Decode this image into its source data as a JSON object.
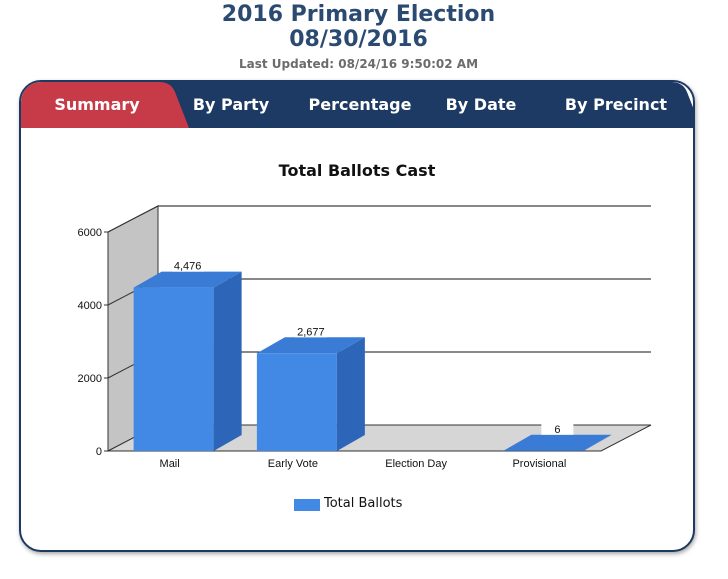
{
  "header": {
    "title_line1": "2016 Primary Election",
    "title_line2": "08/30/2016",
    "last_updated": "Last Updated: 08/24/16 9:50:02 AM"
  },
  "tabs": [
    {
      "label": "Summary",
      "active": true
    },
    {
      "label": "By Party",
      "active": false
    },
    {
      "label": "Percentage",
      "active": false
    },
    {
      "label": "By Date",
      "active": false
    },
    {
      "label": "By Precinct",
      "active": false
    }
  ],
  "colors": {
    "active_tab": "#c73a48",
    "inactive_tab": "#1c3a63",
    "bar": "#4189e4",
    "bar_side": "#2d66b8",
    "bar_top": "#3a7bd6"
  },
  "chart_data": {
    "type": "bar",
    "title": "Total Ballots Cast",
    "categories": [
      "Mail",
      "Early Vote",
      "Election Day",
      "Provisional"
    ],
    "series": [
      {
        "name": "Total Ballots",
        "values": [
          4476,
          2677,
          0,
          6
        ]
      }
    ],
    "data_labels": [
      "4,476",
      "2,677",
      "",
      "6"
    ],
    "y_ticks": [
      "0",
      "2000",
      "4000",
      "6000"
    ],
    "ylim": [
      0,
      6000
    ],
    "grid": true,
    "three_d": true,
    "legend_position": "bottom"
  }
}
